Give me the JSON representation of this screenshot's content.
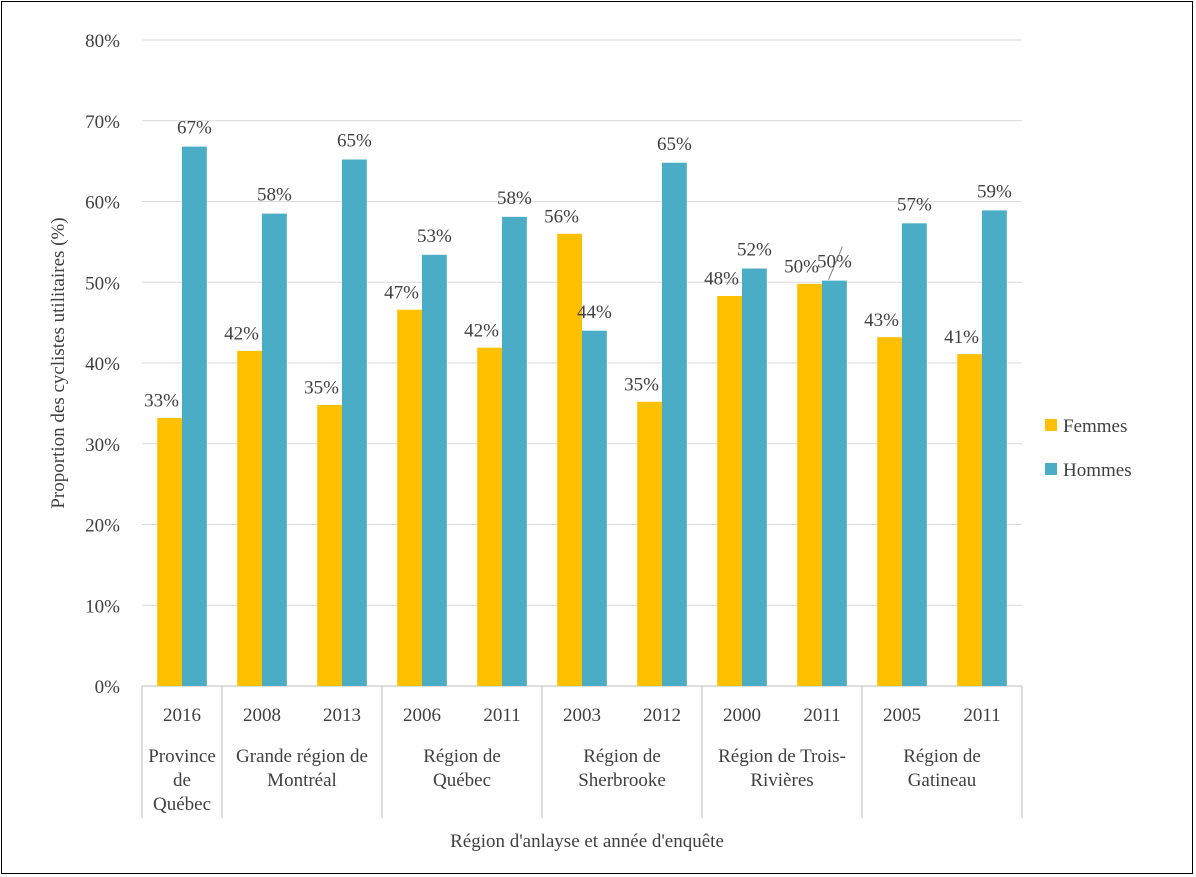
{
  "chart_data": {
    "type": "bar",
    "xlabel": "Région d'anlayse et année d'enquête",
    "ylabel": "Proportion des cyclistes utilitaires (%)",
    "ylim": [
      0,
      80
    ],
    "yticks": [
      "0%",
      "10%",
      "20%",
      "30%",
      "40%",
      "50%",
      "60%",
      "70%",
      "80%"
    ],
    "grid": true,
    "legend_position": "right",
    "groups": [
      {
        "label": [
          "Province",
          "de",
          "Québec"
        ],
        "years": [
          "2016"
        ]
      },
      {
        "label": [
          "Grande région de",
          "Montréal"
        ],
        "years": [
          "2008",
          "2013"
        ]
      },
      {
        "label": [
          "Région de",
          "Québec"
        ],
        "years": [
          "2006",
          "2011"
        ]
      },
      {
        "label": [
          "Région de",
          "Sherbrooke"
        ],
        "years": [
          "2003",
          "2012"
        ]
      },
      {
        "label": [
          "Région de Trois-",
          "Rivières"
        ],
        "years": [
          "2000",
          "2011"
        ]
      },
      {
        "label": [
          "Région de",
          "Gatineau"
        ],
        "years": [
          "2005",
          "2011"
        ]
      }
    ],
    "series": [
      {
        "name": "Femmes",
        "color": "#FFC000",
        "values": [
          33.2,
          41.5,
          34.8,
          46.6,
          41.9,
          56.0,
          35.2,
          48.3,
          49.8,
          43.2,
          41.1
        ],
        "labels": [
          "33%",
          "42%",
          "35%",
          "47%",
          "42%",
          "56%",
          "35%",
          "48%",
          "50%",
          "43%",
          "41%"
        ]
      },
      {
        "name": "Hommes",
        "color": "#4BACC6",
        "values": [
          66.8,
          58.5,
          65.2,
          53.4,
          58.1,
          44.0,
          64.8,
          51.7,
          50.2,
          57.3,
          58.9
        ],
        "labels": [
          "67%",
          "58%",
          "65%",
          "53%",
          "58%",
          "44%",
          "65%",
          "52%",
          "50%",
          "57%",
          "59%"
        ]
      }
    ]
  }
}
